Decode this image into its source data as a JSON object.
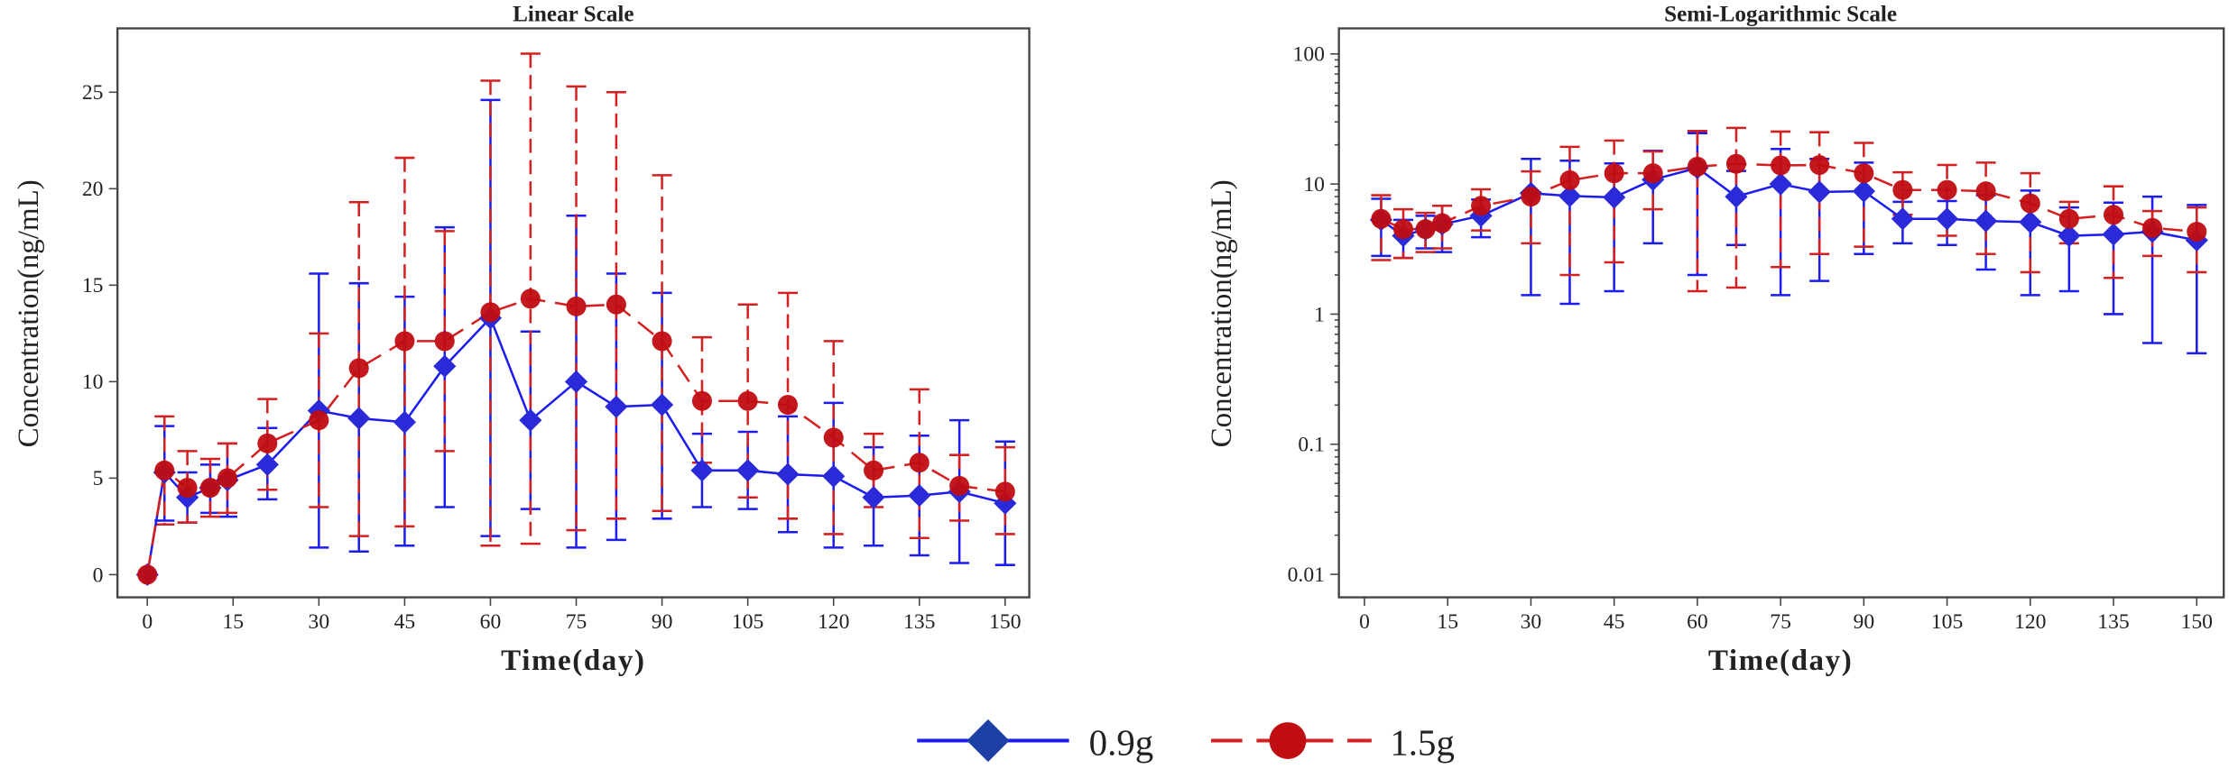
{
  "colors": {
    "s1": "#1c1cf0",
    "s1_marker": "#2a2ad8",
    "s2": "#d42020",
    "s2_marker": "#c00d12"
  },
  "legend": [
    {
      "name": "0.9g"
    },
    {
      "name": "1.5g"
    }
  ],
  "chart_data": [
    {
      "type": "line",
      "title": "Linear Scale",
      "xlabel": "Time(day)",
      "ylabel": "Concentration(ng/mL)",
      "xlim": [
        -3,
        155
      ],
      "ylim": [
        -1,
        28
      ],
      "yscale": "linear",
      "xticks": [
        0,
        15,
        30,
        45,
        60,
        75,
        90,
        105,
        120,
        135,
        150
      ],
      "yticks": [
        0,
        5,
        10,
        15,
        20,
        25
      ],
      "x": [
        0,
        3,
        7,
        11,
        14,
        21,
        30,
        37,
        45,
        52,
        60,
        67,
        75,
        82,
        90,
        97,
        105,
        112,
        120,
        127,
        135,
        142,
        150
      ],
      "series": [
        {
          "name": "0.9g",
          "values": [
            0,
            5.3,
            4.0,
            4.5,
            4.9,
            5.7,
            8.5,
            8.1,
            7.9,
            10.8,
            13.3,
            8.0,
            10.0,
            8.7,
            8.8,
            5.4,
            5.4,
            5.2,
            5.1,
            4.0,
            4.1,
            4.3,
            3.7
          ],
          "lower": [
            0,
            2.8,
            2.7,
            3.2,
            3.0,
            3.9,
            1.4,
            1.2,
            1.5,
            3.5,
            2.0,
            3.4,
            1.4,
            1.8,
            2.9,
            3.5,
            3.4,
            2.2,
            1.4,
            1.5,
            1.0,
            0.6,
            0.5
          ],
          "upper": [
            0,
            7.7,
            5.3,
            5.7,
            6.8,
            7.6,
            15.6,
            15.1,
            14.4,
            18.0,
            24.6,
            12.6,
            18.6,
            15.6,
            14.6,
            7.3,
            7.4,
            8.2,
            8.9,
            6.6,
            7.2,
            8.0,
            6.9
          ]
        },
        {
          "name": "1.5g",
          "values": [
            0,
            5.4,
            4.5,
            4.5,
            5.0,
            6.8,
            8.0,
            10.7,
            12.1,
            12.1,
            13.6,
            14.3,
            13.9,
            14.0,
            12.1,
            9.0,
            9.0,
            8.8,
            7.1,
            5.4,
            5.8,
            4.6,
            4.3
          ],
          "lower": [
            0,
            2.6,
            2.7,
            3.0,
            3.2,
            4.4,
            3.5,
            2.0,
            2.5,
            6.4,
            1.5,
            1.6,
            2.3,
            2.9,
            3.3,
            5.8,
            4.0,
            2.9,
            2.1,
            3.5,
            1.9,
            2.8,
            2.1
          ],
          "upper": [
            0,
            8.2,
            6.4,
            6.0,
            6.8,
            9.1,
            12.5,
            19.3,
            21.6,
            17.8,
            25.6,
            27.0,
            25.3,
            25.0,
            20.7,
            12.3,
            14.0,
            14.6,
            12.1,
            7.3,
            9.6,
            6.2,
            6.6
          ]
        }
      ]
    },
    {
      "type": "line",
      "title": "Semi-Logarithmic Scale",
      "xlabel": "Time(day)",
      "ylabel": "Concentration(ng/mL)",
      "xlim": [
        -3,
        155
      ],
      "ylim": [
        0.005,
        150
      ],
      "yscale": "log",
      "xticks": [
        0,
        15,
        30,
        45,
        60,
        75,
        90,
        105,
        120,
        135,
        150
      ],
      "yticks": [
        0.01,
        0.1,
        1,
        10,
        100
      ],
      "x": [
        3,
        7,
        11,
        14,
        21,
        30,
        37,
        45,
        52,
        60,
        67,
        75,
        82,
        90,
        97,
        105,
        112,
        120,
        127,
        135,
        142,
        150
      ],
      "series": [
        {
          "name": "0.9g",
          "values": [
            5.3,
            4.0,
            4.5,
            4.9,
            5.7,
            8.5,
            8.1,
            7.9,
            10.8,
            13.3,
            8.0,
            10.0,
            8.7,
            8.8,
            5.4,
            5.4,
            5.2,
            5.1,
            4.0,
            4.1,
            4.3,
            3.7
          ],
          "lower": [
            2.8,
            2.7,
            3.2,
            3.0,
            3.9,
            1.4,
            1.2,
            1.5,
            3.5,
            2.0,
            3.4,
            1.4,
            1.8,
            2.9,
            3.5,
            3.4,
            2.2,
            1.4,
            1.5,
            1.0,
            0.6,
            0.5
          ],
          "upper": [
            7.7,
            5.3,
            5.7,
            6.8,
            7.6,
            15.6,
            15.1,
            14.4,
            18.0,
            24.6,
            12.6,
            18.6,
            15.6,
            14.6,
            7.3,
            7.4,
            8.2,
            8.9,
            6.6,
            7.2,
            8.0,
            6.9
          ]
        },
        {
          "name": "1.5g",
          "values": [
            5.4,
            4.5,
            4.5,
            5.0,
            6.8,
            8.0,
            10.7,
            12.1,
            12.1,
            13.6,
            14.3,
            13.9,
            14.0,
            12.1,
            9.0,
            9.0,
            8.8,
            7.1,
            5.4,
            5.8,
            4.6,
            4.3
          ],
          "lower": [
            2.6,
            2.7,
            3.0,
            3.2,
            4.4,
            3.5,
            2.0,
            2.5,
            6.4,
            1.5,
            1.6,
            2.3,
            2.9,
            3.3,
            5.8,
            4.0,
            2.9,
            2.1,
            3.5,
            1.9,
            2.8,
            2.1
          ],
          "upper": [
            8.2,
            6.4,
            6.0,
            6.8,
            9.1,
            12.5,
            19.3,
            21.6,
            17.8,
            25.6,
            27.0,
            25.3,
            25.0,
            20.7,
            12.3,
            14.0,
            14.6,
            12.1,
            7.3,
            9.6,
            6.2,
            6.6
          ]
        }
      ]
    }
  ]
}
